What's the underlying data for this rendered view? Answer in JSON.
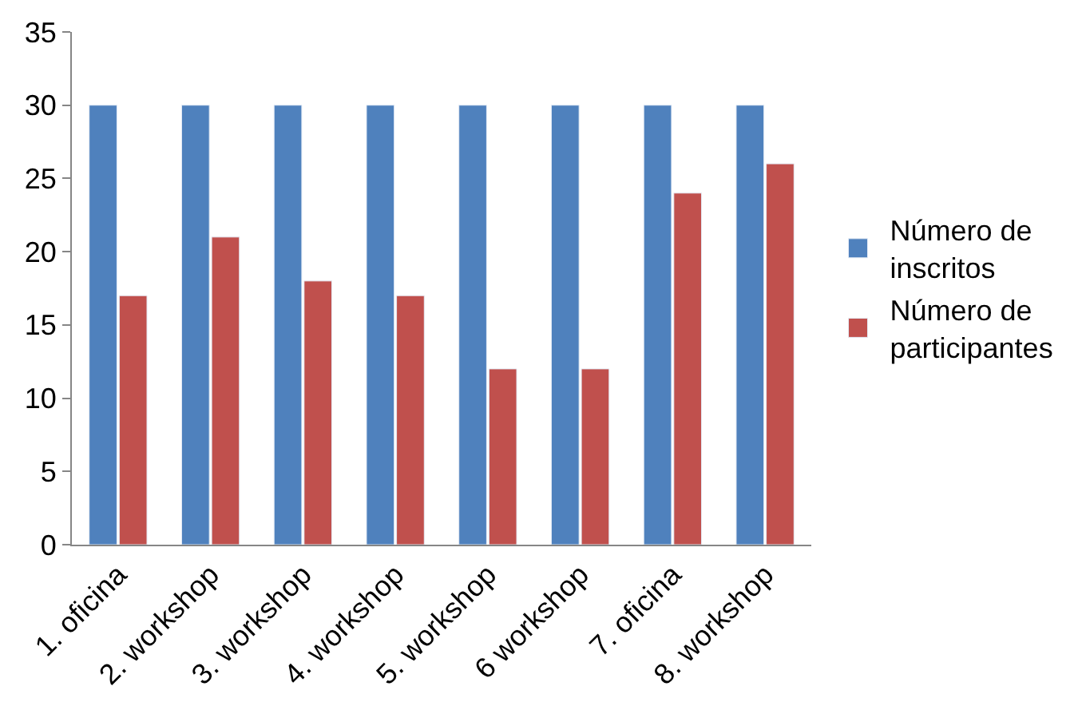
{
  "chart_data": {
    "type": "bar",
    "categories": [
      "1. oficina",
      "2. workshop",
      "3. workshop",
      "4. workshop",
      "5. workshop",
      "6 workshop",
      "7. oficina",
      "8. workshop"
    ],
    "series": [
      {
        "name": "Número de inscritos",
        "color": "#4f81bd",
        "values": [
          30,
          30,
          30,
          30,
          30,
          30,
          30,
          30
        ]
      },
      {
        "name": "Número de participantes",
        "color": "#c0504d",
        "values": [
          17,
          21,
          18,
          17,
          12,
          12,
          24,
          26
        ]
      }
    ],
    "ylim": [
      0,
      35
    ],
    "yticks": [
      0,
      5,
      10,
      15,
      20,
      25,
      30,
      35
    ],
    "legend": "right"
  }
}
